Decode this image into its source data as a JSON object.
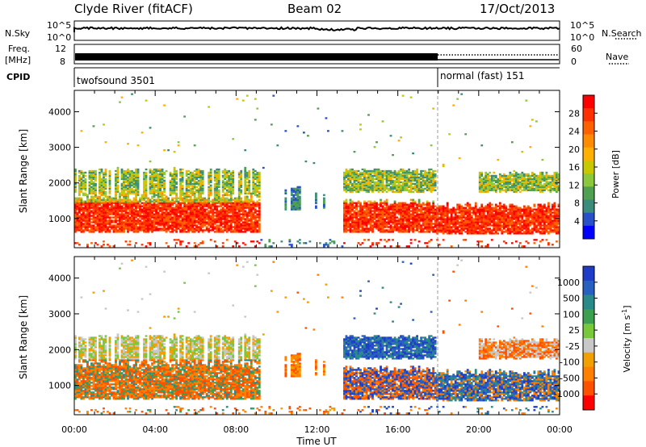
{
  "header": {
    "station": "Clyde River (fitACF)",
    "beam": "Beam 02",
    "date": "17/Oct/2013"
  },
  "strips": {
    "nsky_label": "N.Sky",
    "nsky_ticks": [
      "10^5",
      "10^0"
    ],
    "nsearch_label": "N.Search",
    "nsearch_ticks": [
      "10^5",
      "10^0"
    ],
    "freq_label_1": "Freq.",
    "freq_label_2": "[MHz]",
    "freq_ticks": [
      "12",
      "8"
    ],
    "nave_label": "Nave",
    "nave_ticks": [
      "60",
      "0"
    ],
    "cpid_label": "CPID",
    "cpid_modes": [
      {
        "name": "twofsound 3501",
        "start_hour": 0
      },
      {
        "name": "normal (fast) 151",
        "start_hour": 18
      }
    ]
  },
  "chart_data": [
    {
      "type": "heatmap",
      "name": "power",
      "ylabel": "Slant Range [km]",
      "xlabel": "",
      "xlim": [
        0,
        24
      ],
      "ylim": [
        180,
        4600
      ],
      "x_ticks": [
        "00:00",
        "04:00",
        "08:00",
        "12:00",
        "16:00",
        "20:00",
        "00:00"
      ],
      "y_ticks": [
        1000,
        2000,
        3000,
        4000
      ],
      "colorbar": {
        "label": "Power [dB]",
        "ticks": [
          "28",
          "24",
          "20",
          "16",
          "12",
          "8",
          "4"
        ],
        "colors": [
          "#ff0000",
          "#ff3000",
          "#ff6000",
          "#ff8c00",
          "#ffb000",
          "#c8c800",
          "#8cc83c",
          "#50a050",
          "#3c8c7c",
          "#2850c8",
          "#0000ff"
        ]
      }
    },
    {
      "type": "heatmap",
      "name": "velocity",
      "ylabel": "Slant Range [km]",
      "xlabel": "Time UT",
      "xlim": [
        0,
        24
      ],
      "ylim": [
        180,
        4600
      ],
      "x_ticks": [
        "00:00",
        "04:00",
        "08:00",
        "12:00",
        "16:00",
        "20:00",
        "00:00"
      ],
      "y_ticks": [
        1000,
        2000,
        3000,
        4000
      ],
      "colorbar": {
        "label": "Velocity [m s",
        "label_sup": "-1",
        "label_end": "]",
        "ticks": [
          "1000",
          "500",
          "100",
          "25",
          "-25",
          "-100",
          "-500",
          "-1000"
        ],
        "colors": [
          "#1e3cc8",
          "#2860c0",
          "#2a8a8a",
          "#3ca050",
          "#78c83c",
          "#c8c8c8",
          "#f0a000",
          "#ff8000",
          "#ff5000",
          "#ff0000"
        ]
      }
    }
  ]
}
